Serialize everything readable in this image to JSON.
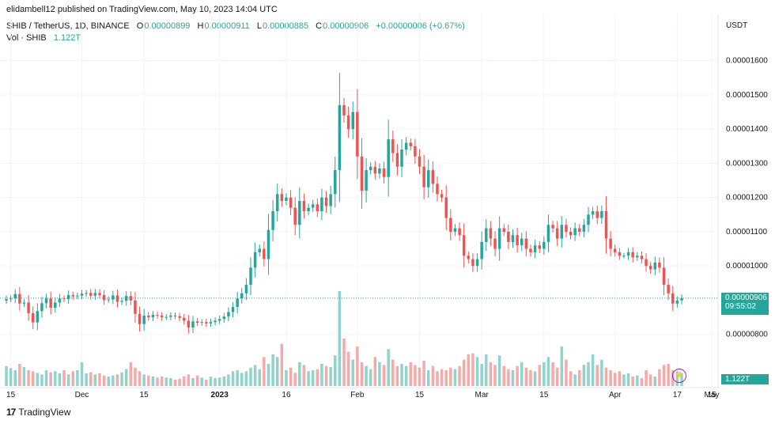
{
  "header": {
    "text": "elidambell12 published on TradingView.com, May 10, 2023 14:04 UTC"
  },
  "legend": {
    "symbol": "SHIB / TetherUS, 1D, BINANCE",
    "o_label": "O",
    "o": "0.00000899",
    "h_label": "H",
    "h": "0.00000911",
    "l_label": "L",
    "l": "0.00000885",
    "c_label": "C",
    "c": "0.00000906",
    "change": "+0.00000006 (+0.67%)",
    "vol_label": "Vol · SHIB",
    "vol": "1.122T"
  },
  "price_axis": {
    "currency": "USDT",
    "ticks": [
      "0.00001600",
      "0.00001500",
      "0.00001400",
      "0.00001300",
      "0.00001200",
      "0.00001100",
      "0.00001000",
      "0.00000800"
    ]
  },
  "last_price_tag": {
    "price": "0.00000906",
    "countdown": "09:55:02"
  },
  "volume_tag": "1.122T",
  "time_axis": {
    "labels": [
      "15",
      "Dec",
      "15",
      "2023",
      "16",
      "Feb",
      "15",
      "Mar",
      "15",
      "Apr",
      "17",
      "May",
      "15"
    ]
  },
  "brand": {
    "logo": "17",
    "name": "TradingView"
  },
  "colors": {
    "up": "#26a69a",
    "down": "#ef5350",
    "up_vol": "#8fd3cc",
    "down_vol": "#f6a9a7",
    "grid": "#f0f3fa",
    "tag": "#26a69a"
  },
  "chart_data": {
    "type": "candlestick",
    "title": "SHIB / TetherUS, 1D, BINANCE",
    "x_start": "2022-11-14",
    "ylabel": "USDT",
    "ylim": [
      7.6e-06,
      1.65e-05
    ],
    "volume_label": "Vol · SHIB",
    "close": [
      9.03e-06,
      9.05e-06,
      9.18e-06,
      8.9e-06,
      8.93e-06,
      8.62e-06,
      8.35e-06,
      8.68e-06,
      8.91e-06,
      9.05e-06,
      8.78e-06,
      8.93e-06,
      9.05e-06,
      9.03e-06,
      9.15e-06,
      9.11e-06,
      9.13e-06,
      9.19e-06,
      9.21e-06,
      9.13e-06,
      9.21e-06,
      9.15e-06,
      9.01e-06,
      9.02e-06,
      9.14e-06,
      8.95e-06,
      8.98e-06,
      9.12e-06,
      8.99e-06,
      8.6e-06,
      8.3e-06,
      8.55e-06,
      8.5e-06,
      8.57e-06,
      8.55e-06,
      8.5e-06,
      8.51e-06,
      8.55e-06,
      8.53e-06,
      8.48e-06,
      8.4e-06,
      8.2e-06,
      8.38e-06,
      8.34e-06,
      8.36e-06,
      8.32e-06,
      8.36e-06,
      8.4e-06,
      8.45e-06,
      8.52e-06,
      8.65e-06,
      8.8e-06,
      9.05e-06,
      9.2e-06,
      9.45e-06,
      9.95e-06,
      1.04e-05,
      1.05e-05,
      1.02e-05,
      1.105e-05,
      1.16e-05,
      1.21e-05,
      1.19e-05,
      1.2e-05,
      1.17e-05,
      1.12e-05,
      1.19e-05,
      1.16e-05,
      1.17e-05,
      1.18e-05,
      1.16e-05,
      1.2e-05,
      1.175e-05,
      1.21e-05,
      1.28e-05,
      1.47e-05,
      1.44e-05,
      1.4e-05,
      1.45e-05,
      1.32e-05,
      1.22e-05,
      1.28e-05,
      1.29e-05,
      1.27e-05,
      1.285e-05,
      1.26e-05,
      1.37e-05,
      1.33e-05,
      1.29e-05,
      1.34e-05,
      1.36e-05,
      1.35e-05,
      1.32e-05,
      1.29e-05,
      1.23e-05,
      1.28e-05,
      1.24e-05,
      1.21e-05,
      1.2e-05,
      1.14e-05,
      1.1e-05,
      1.11e-05,
      1.09e-05,
      1.03e-05,
      1.02e-05,
      1e-05,
      1.02e-05,
      1.07e-05,
      1.11e-05,
      1.08e-05,
      1.05e-05,
      1.11e-05,
      1.1e-05,
      1.07e-05,
      1.09e-05,
      1.06e-05,
      1.08e-05,
      1.05e-05,
      1.04e-05,
      1.06e-05,
      1.05e-05,
      1.07e-05,
      1.12e-05,
      1.11e-05,
      1.08e-05,
      1.12e-05,
      1.1e-05,
      1.09e-05,
      1.11e-05,
      1.1e-05,
      1.12e-05,
      1.15e-05,
      1.16e-05,
      1.14e-05,
      1.16e-05,
      1.08e-05,
      1.05e-05,
      1.04e-05,
      1.03e-05,
      1.03e-05,
      1.04e-05,
      1.025e-05,
      1.03e-05,
      1.02e-05,
      1e-05,
      9.9e-06,
      1.01e-05,
      9.95e-06,
      9.45e-06,
      9.2e-06,
      8.9e-06,
      8.99e-06,
      9.06e-06
    ],
    "volume": [
      0.38,
      0.34,
      0.3,
      0.42,
      0.36,
      0.3,
      0.28,
      0.25,
      0.22,
      0.3,
      0.26,
      0.28,
      0.24,
      0.3,
      0.22,
      0.28,
      0.3,
      0.45,
      0.24,
      0.26,
      0.22,
      0.24,
      0.2,
      0.18,
      0.2,
      0.22,
      0.26,
      0.32,
      0.45,
      0.35,
      0.28,
      0.22,
      0.2,
      0.18,
      0.16,
      0.18,
      0.16,
      0.15,
      0.12,
      0.14,
      0.18,
      0.22,
      0.15,
      0.2,
      0.16,
      0.12,
      0.18,
      0.15,
      0.16,
      0.18,
      0.22,
      0.28,
      0.3,
      0.25,
      0.28,
      0.35,
      0.4,
      0.32,
      0.55,
      0.42,
      0.6,
      0.55,
      0.8,
      0.3,
      0.35,
      0.25,
      0.45,
      0.4,
      0.28,
      0.3,
      0.32,
      0.42,
      0.38,
      0.36,
      0.58,
      1.8,
      0.9,
      0.65,
      0.5,
      0.75,
      0.45,
      0.38,
      0.32,
      0.55,
      0.45,
      0.4,
      0.7,
      0.5,
      0.38,
      0.42,
      0.38,
      0.45,
      0.4,
      0.35,
      0.48,
      0.3,
      0.38,
      0.28,
      0.32,
      0.3,
      0.35,
      0.32,
      0.38,
      0.5,
      0.6,
      0.62,
      0.55,
      0.42,
      0.6,
      0.45,
      0.4,
      0.58,
      0.38,
      0.32,
      0.3,
      0.38,
      0.45,
      0.35,
      0.3,
      0.28,
      0.4,
      0.45,
      0.55,
      0.45,
      0.35,
      0.75,
      0.5,
      0.28,
      0.22,
      0.3,
      0.4,
      0.45,
      0.6,
      0.4,
      0.5,
      0.35,
      0.3,
      0.25,
      0.28,
      0.22,
      0.24,
      0.18,
      0.2,
      0.15,
      0.3,
      0.22,
      0.18,
      0.32,
      0.4,
      0.42,
      0.3,
      0.28,
      0.25
    ]
  }
}
